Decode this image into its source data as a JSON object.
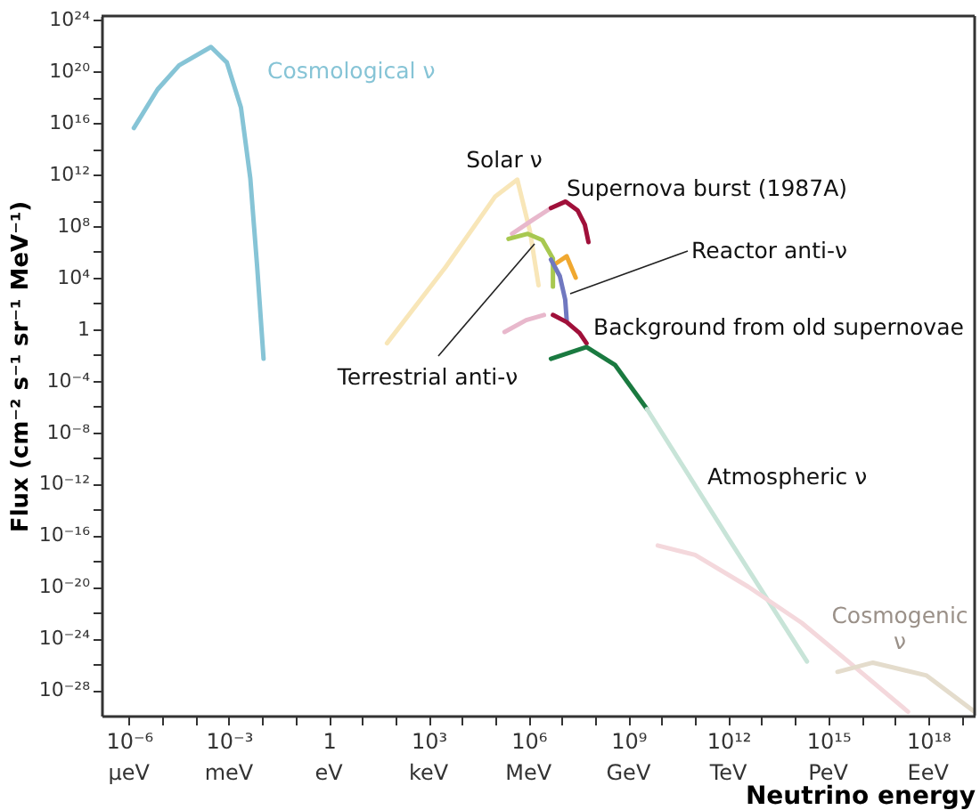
{
  "chart_data": {
    "type": "line",
    "xlabel": "Neutrino energy",
    "ylabel": "Flux (cm⁻² s⁻¹ sr⁻¹ MeV⁻¹)",
    "log": "xy",
    "marker": "none",
    "line_style": "solid",
    "xlim": [
      1.5e-07,
      2.5e+19
    ],
    "ylim": [
      1e-30,
      2e+24
    ],
    "xticks": [
      {
        "value": 1e-06,
        "label": "10⁻⁶"
      },
      {
        "value": 1e-05,
        "label": null
      },
      {
        "value": 0.0001,
        "label": null
      },
      {
        "value": 0.001,
        "label": "10⁻³"
      },
      {
        "value": 0.01,
        "label": null
      },
      {
        "value": 0.1,
        "label": null
      },
      {
        "value": 1,
        "label": "1"
      },
      {
        "value": 10.0,
        "label": null
      },
      {
        "value": 100.0,
        "label": null
      },
      {
        "value": 1000.0,
        "label": "10³"
      },
      {
        "value": 10000.0,
        "label": null
      },
      {
        "value": 100000.0,
        "label": null
      },
      {
        "value": 1000000.0,
        "label": "10⁶"
      },
      {
        "value": 10000000.0,
        "label": null
      },
      {
        "value": 100000000.0,
        "label": null
      },
      {
        "value": 1000000000.0,
        "label": "10⁹"
      },
      {
        "value": 10000000000.0,
        "label": null
      },
      {
        "value": 100000000000.0,
        "label": null
      },
      {
        "value": 1000000000000.0,
        "label": "10¹²"
      },
      {
        "value": 10000000000000.0,
        "label": null
      },
      {
        "value": 100000000000000.0,
        "label": null
      },
      {
        "value": 1000000000000000.0,
        "label": "10¹⁵"
      },
      {
        "value": 1e+16,
        "label": null
      },
      {
        "value": 1e+17,
        "label": null
      },
      {
        "value": 1e+18,
        "label": "10¹⁸"
      },
      {
        "value": 1e+19,
        "label": null
      }
    ],
    "annotations": [
      "μeV",
      "meV",
      "eV",
      "keV",
      "MeV",
      "GeV",
      "TeV",
      "PeV",
      "EeV"
    ],
    "yticks": [
      {
        "value": 1e-28,
        "label": "10⁻²⁸"
      },
      {
        "value": 1e-26,
        "label": null
      },
      {
        "value": 1e-24,
        "label": "10⁻²⁴"
      },
      {
        "value": 1e-22,
        "label": null
      },
      {
        "value": 1e-20,
        "label": "10⁻²⁰"
      },
      {
        "value": 1e-18,
        "label": null
      },
      {
        "value": 1e-16,
        "label": "10⁻¹⁶"
      },
      {
        "value": 1e-14,
        "label": null
      },
      {
        "value": 1e-12,
        "label": "10⁻¹²"
      },
      {
        "value": 1e-10,
        "label": null
      },
      {
        "value": 1e-08,
        "label": "10⁻⁸"
      },
      {
        "value": 1e-06,
        "label": null
      },
      {
        "value": 0.0001,
        "label": "10⁻⁴"
      },
      {
        "value": 0.01,
        "label": null
      },
      {
        "value": 1,
        "label": "1"
      },
      {
        "value": 100.0,
        "label": null
      },
      {
        "value": 10000.0,
        "label": "10⁴"
      },
      {
        "value": 1000000.0,
        "label": null
      },
      {
        "value": 100000000.0,
        "label": "10⁸"
      },
      {
        "value": 10000000000.0,
        "label": null
      },
      {
        "value": 1000000000000.0,
        "label": "10¹²"
      },
      {
        "value": 100000000000000.0,
        "label": null
      },
      {
        "value": 1e+16,
        "label": "10¹⁶"
      },
      {
        "value": 1e+18,
        "label": null
      },
      {
        "value": 1e+20,
        "label": "10²⁰"
      },
      {
        "value": 1e+22,
        "label": null
      },
      {
        "value": 1e+24,
        "label": "10²⁴"
      }
    ],
    "series": [
      {
        "name": "Cosmological ν",
        "color": "#86c4d6",
        "x": [
          1.4e-06,
          7.2e-06,
          3.2e-05,
          0.00029,
          0.00087,
          0.0023,
          0.0044,
          0.0071,
          0.011
        ],
        "values": [
          4000000000000000.0,
          4e+18,
          3e+20,
          8e+21,
          5e+20,
          1.6e+17,
          500000000000.0,
          60000.0,
          0.005
        ]
      },
      {
        "name": "Solar ν",
        "color": "#f8e6b8",
        "x": [
          56,
          3200.0,
          100000.0,
          460000.0,
          1100000.0,
          2000000.0
        ],
        "values": [
          0.08,
          63000.0,
          20000000000.0,
          400000000000.0,
          40000000.0,
          2500.0
        ]
      },
      {
        "color": "#e8b8cc",
        "x": [
          320000.0,
          1200000.0,
          4700000.0
        ],
        "values": [
          25000000.0,
          250000000.0,
          2500000000.0
        ]
      },
      {
        "name": "Supernova burst (1987A)",
        "color": "#a0103a",
        "x": [
          4700000.0,
          13000000.0,
          30000000.0,
          49000000.0,
          63000000.0
        ],
        "values": [
          2500000000.0,
          8000000000.0,
          1600000000.0,
          130000000.0,
          5600000.0
        ]
      },
      {
        "name": "Terrestrial anti-ν",
        "color": "#a8c850",
        "x": [
          250000.0,
          950000.0,
          2600000.0,
          5400000.0,
          5400000.0
        ],
        "values": [
          10000000.0,
          25000000.0,
          8000000.0,
          300000.0,
          2000.0
        ]
      },
      {
        "color": "#f0a830",
        "x": [
          6800000.0,
          14000000.0,
          26000000.0
        ],
        "values": [
          130000.0,
          450000.0,
          10000.0
        ]
      },
      {
        "name": "Reactor anti-ν",
        "color": "#7078c0",
        "x": [
          4700000.0,
          8700000.0,
          12600000.0,
          14000000.0
        ],
        "values": [
          250000.0,
          13000.0,
          200,
          5
        ]
      },
      {
        "color": "#e8b8cc",
        "x": [
          190000.0,
          850000.0,
          2900000.0
        ],
        "values": [
          0.6,
          5,
          12.6
        ]
      },
      {
        "name": "Background from old supernovae",
        "color": "#a0103a",
        "x": [
          5400000.0,
          14000000.0,
          34000000.0,
          55000000.0
        ],
        "values": [
          12.6,
          3.5,
          0.5,
          0.08
        ]
      },
      {
        "color": "#1a7a40",
        "x": [
          4700000.0,
          55000000.0,
          400000000.0,
          3600000000.0
        ],
        "values": [
          0.005,
          0.04,
          0.0016,
          6.3e-07
        ]
      },
      {
        "name": "Atmospheric ν",
        "color": "#c8e4d8",
        "x": [
          3600000000.0,
          1000000000000.0,
          230000000000000.0
        ],
        "values": [
          6.3e-07,
          6e-17,
          1.6e-26
        ]
      },
      {
        "color": "#f4d8dc",
        "x": [
          7600000000.0,
          100000000000.0,
          4000000000000.0,
          160000000000000.0,
          6300000000000000.0,
          2.5e+17
        ],
        "values": [
          1.6e-17,
          3e-18,
          1e-20,
          1.6e-23,
          6e-27,
          2e-30
        ]
      },
      {
        "name": "Cosmogenic ν",
        "color": "#e4dccc",
        "x": [
          1900000000000000.0,
          2.2e+16,
          9e+17,
          2.5e+19
        ],
        "values": [
          2.5e-27,
          1.3e-26,
          1.3e-27,
          2e-30
        ]
      }
    ]
  }
}
